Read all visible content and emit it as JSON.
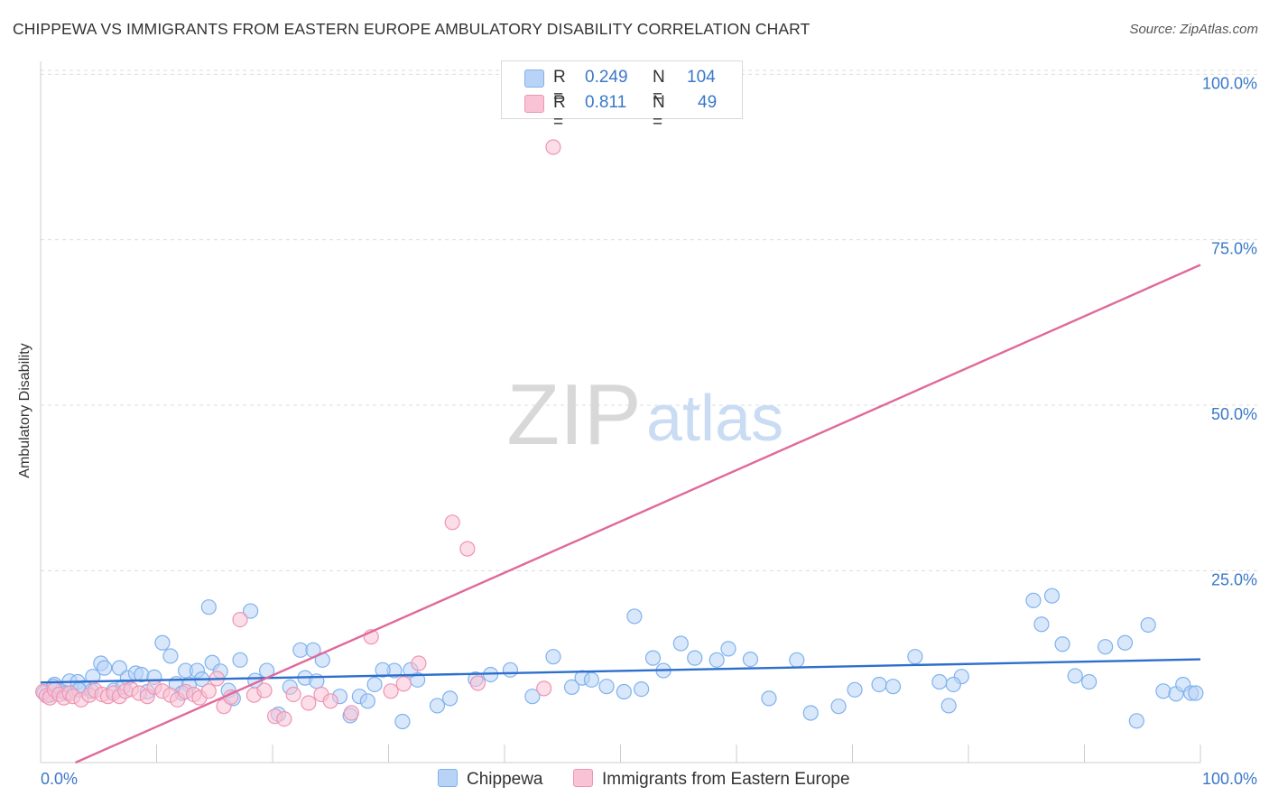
{
  "title": "CHIPPEWA VS IMMIGRANTS FROM EASTERN EUROPE AMBULATORY DISABILITY CORRELATION CHART",
  "source": "Source: ZipAtlas.com",
  "watermark": {
    "zip": "ZIP",
    "atlas": "atlas"
  },
  "legend": {
    "r_label": "R =",
    "n_label": "N =",
    "series": [
      {
        "name": "Chippewa",
        "r": "0.249",
        "n": "104",
        "color": "#7fb2ee",
        "fill": "#b9d3f7"
      },
      {
        "name": "Immigrants from Eastern Europe",
        "r": "0.811",
        "n": "49",
        "color": "#f094b4",
        "fill": "#f8c3d4"
      }
    ]
  },
  "chart_data": {
    "type": "scatter",
    "title": "CHIPPEWA VS IMMIGRANTS FROM EASTERN EUROPE AMBULATORY DISABILITY CORRELATION CHART",
    "xlabel": "",
    "ylabel": "Ambulatory Disability",
    "xlim": [
      0,
      100
    ],
    "ylim": [
      -4,
      101
    ],
    "x_tick_labels": [
      "0.0%",
      "100.0%"
    ],
    "y_ticks": [
      25,
      50,
      75,
      100
    ],
    "y_tick_labels": [
      "25.0%",
      "50.0%",
      "75.0%",
      "100.0%"
    ],
    "grid": true,
    "legend_position": "top-center",
    "series": [
      {
        "name": "Chippewa",
        "color": "#7fb2ee",
        "fill": "#b9d3f7",
        "trend_color": "#2e6fcc",
        "trend": {
          "x": [
            0,
            100
          ],
          "y": [
            8.1,
            11.6
          ]
        },
        "x": [
          0.3,
          0.8,
          1.2,
          1.8,
          2.5,
          3.2,
          3.8,
          4.5,
          5.2,
          5.5,
          6.3,
          6.8,
          7.5,
          8.2,
          8.7,
          9.2,
          9.8,
          10.5,
          11.2,
          11.7,
          12.5,
          12.8,
          13.5,
          13.9,
          14.5,
          14.8,
          15.5,
          16.2,
          16.6,
          17.2,
          18.5,
          19.5,
          20.5,
          21.5,
          22.4,
          22.8,
          23.5,
          23.8,
          24.3,
          25.8,
          26.7,
          27.5,
          28.2,
          28.8,
          30.5,
          31.2,
          32.5,
          34.2,
          35.3,
          37.5,
          38.8,
          40.5,
          42.4,
          44.2,
          45.8,
          46.7,
          47.5,
          48.8,
          50.3,
          51.8,
          52.8,
          53.7,
          55.2,
          56.4,
          58.3,
          59.3,
          61.2,
          62.8,
          65.2,
          66.4,
          68.8,
          70.2,
          72.3,
          73.5,
          75.4,
          77.5,
          78.3,
          79.4,
          85.6,
          86.3,
          87.2,
          88.1,
          89.2,
          90.4,
          91.8,
          93.5,
          94.5,
          95.5,
          96.8,
          97.9,
          98.5,
          99.2,
          99.6,
          1.1,
          2.2,
          3.3,
          4.4,
          7.1,
          12.2,
          18.1,
          29.5,
          31.9,
          51.2,
          78.7
        ],
        "y": [
          6.5,
          6.2,
          7.8,
          6.8,
          8.3,
          8.2,
          7.3,
          9.0,
          11.0,
          10.3,
          6.9,
          10.3,
          8.8,
          9.5,
          9.3,
          6.7,
          8.9,
          14.1,
          12.1,
          7.9,
          9.9,
          7.8,
          9.9,
          8.6,
          19.5,
          11.1,
          9.8,
          6.9,
          5.7,
          11.5,
          8.4,
          9.9,
          3.3,
          7.4,
          13.0,
          8.8,
          13.0,
          8.3,
          11.5,
          6.0,
          3.1,
          6.0,
          5.3,
          7.8,
          9.9,
          2.2,
          8.5,
          4.6,
          5.7,
          8.6,
          9.3,
          10.0,
          6.0,
          12.0,
          7.4,
          8.8,
          8.5,
          7.5,
          6.7,
          7.1,
          11.8,
          9.9,
          14.0,
          11.8,
          11.5,
          13.2,
          11.6,
          5.7,
          11.5,
          3.5,
          4.5,
          7.0,
          7.8,
          7.5,
          12.0,
          8.2,
          4.6,
          9.0,
          20.5,
          16.9,
          21.2,
          13.9,
          9.1,
          8.2,
          13.5,
          14.1,
          2.3,
          16.8,
          6.8,
          6.4,
          7.8,
          6.5,
          6.5,
          7.5,
          6.5,
          7.0,
          6.8,
          7.4,
          6.5,
          18.9,
          10.0,
          10.0,
          18.1,
          7.8
        ]
      },
      {
        "name": "Immigrants from Eastern Europe",
        "color": "#f094b4",
        "fill": "#f8c3d4",
        "trend_color": "#e0699a",
        "trend": {
          "x": [
            3,
            100
          ],
          "y": [
            -4,
            71.2
          ]
        },
        "x": [
          0.2,
          0.5,
          0.8,
          1.2,
          1.6,
          2.0,
          2.5,
          2.8,
          3.5,
          4.2,
          4.7,
          5.3,
          5.8,
          6.3,
          6.8,
          7.3,
          7.8,
          8.5,
          9.2,
          9.8,
          10.5,
          11.2,
          11.8,
          12.5,
          13.2,
          13.7,
          14.5,
          15.2,
          15.8,
          16.4,
          17.2,
          18.4,
          19.3,
          20.2,
          21.0,
          21.8,
          23.1,
          24.2,
          25.0,
          26.8,
          28.5,
          30.2,
          31.3,
          32.6,
          35.5,
          36.8,
          37.7,
          43.4,
          44.2
        ],
        "y": [
          6.7,
          6.1,
          5.8,
          7.0,
          6.3,
          5.8,
          6.5,
          6.0,
          5.5,
          6.2,
          6.9,
          6.3,
          6.0,
          6.5,
          6.0,
          6.8,
          7.1,
          6.5,
          6.0,
          7.4,
          6.8,
          6.2,
          5.5,
          6.7,
          6.3,
          5.8,
          6.8,
          8.7,
          4.5,
          5.9,
          17.6,
          6.2,
          6.9,
          3.0,
          2.6,
          6.3,
          5.0,
          6.3,
          5.3,
          3.5,
          15.0,
          6.8,
          7.9,
          11.0,
          32.3,
          28.3,
          8.0,
          7.2,
          89.0
        ]
      }
    ]
  }
}
